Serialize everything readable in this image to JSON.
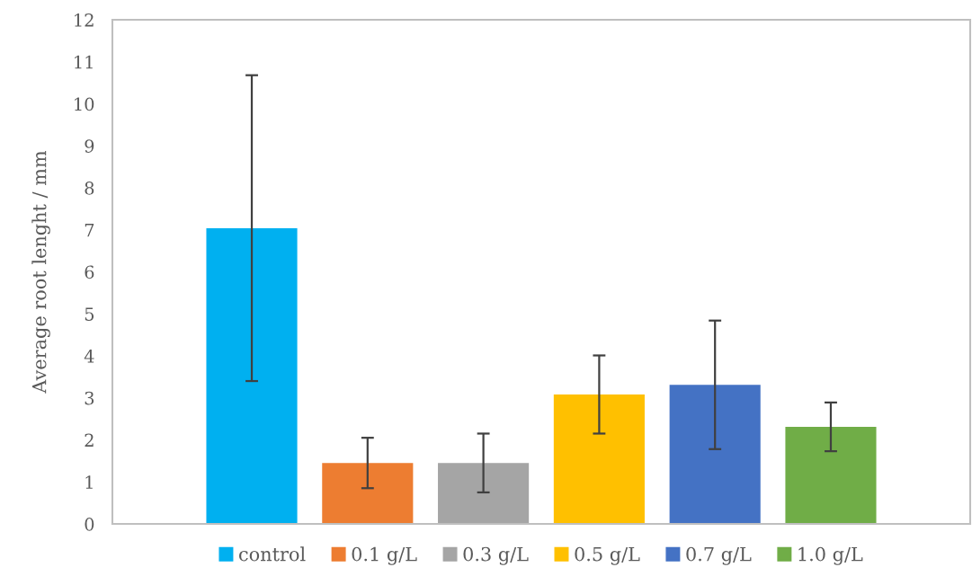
{
  "chart_data": {
    "type": "bar",
    "ylabel": "Average root lenght / mm",
    "categories": [
      null
    ],
    "series": [
      {
        "name": "control",
        "color": "#00b0f0",
        "values": [
          7.04
        ],
        "errors": [
          3.64
        ]
      },
      {
        "name": "0.1 g/L",
        "color": "#ed7d31",
        "values": [
          1.45
        ],
        "errors": [
          0.6
        ]
      },
      {
        "name": "0.3 g/L",
        "color": "#a5a5a5",
        "values": [
          1.45
        ],
        "errors": [
          0.7
        ]
      },
      {
        "name": "0.5 g/L",
        "color": "#ffc000",
        "values": [
          3.08
        ],
        "errors": [
          0.93
        ]
      },
      {
        "name": "0.7 g/L",
        "color": "#4472c4",
        "values": [
          3.31
        ],
        "errors": [
          1.53
        ]
      },
      {
        "name": "1.0 g/L",
        "color": "#70ad47",
        "values": [
          2.31
        ],
        "errors": [
          0.58
        ]
      }
    ],
    "ylim": [
      0,
      12
    ],
    "yticks": [
      0,
      1,
      2,
      3,
      4,
      5,
      6,
      7,
      8,
      9,
      10,
      11,
      12
    ],
    "grid": false,
    "legend": "bottom"
  }
}
